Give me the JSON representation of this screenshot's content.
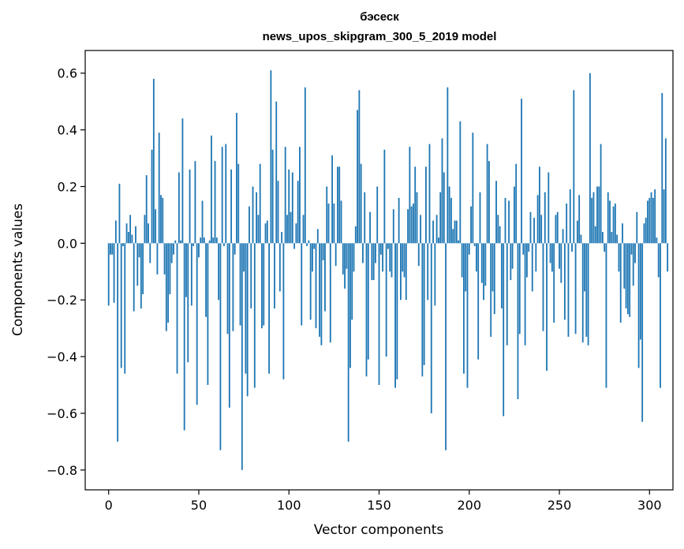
{
  "chart_data": {
    "type": "bar",
    "title_line1": "бэсеск",
    "title_line2": "news_upos_skipgram_300_5_2019 model",
    "xlabel": "Vector components",
    "ylabel": "Components values",
    "xlim": [
      -13,
      313
    ],
    "ylim": [
      -0.87,
      0.68
    ],
    "xticks": [
      0,
      50,
      100,
      150,
      200,
      250,
      300
    ],
    "yticks": [
      -0.8,
      -0.6,
      -0.4,
      -0.2,
      0.0,
      0.2,
      0.4,
      0.6
    ],
    "ytick_labels": [
      "−0.8",
      "−0.6",
      "−0.4",
      "−0.2",
      "0.0",
      "0.2",
      "0.4",
      "0.6"
    ],
    "grid": false,
    "bar_color": "#1f77b4",
    "values": [
      -0.22,
      -0.04,
      -0.04,
      -0.21,
      0.08,
      -0.7,
      0.21,
      -0.44,
      -0.01,
      -0.46,
      0.07,
      0.04,
      0.1,
      0.03,
      -0.24,
      0.06,
      -0.15,
      -0.05,
      -0.23,
      -0.18,
      0.1,
      0.24,
      0.07,
      -0.07,
      0.33,
      0.58,
      0.12,
      -0.11,
      0.39,
      0.17,
      0.16,
      -0.11,
      -0.31,
      -0.28,
      -0.18,
      -0.07,
      -0.04,
      0.01,
      -0.46,
      0.25,
      0.01,
      0.44,
      -0.66,
      -0.19,
      -0.42,
      0.26,
      -0.22,
      -0.01,
      0.29,
      -0.57,
      -0.05,
      0.02,
      0.15,
      0.02,
      -0.26,
      -0.5,
      0.01,
      0.38,
      0.02,
      0.29,
      0.02,
      -0.2,
      -0.73,
      0.34,
      -0.01,
      0.35,
      -0.32,
      -0.58,
      0.26,
      -0.31,
      -0.04,
      0.46,
      0.28,
      -0.29,
      -0.8,
      -0.1,
      -0.46,
      -0.54,
      0.13,
      -0.23,
      0.2,
      -0.51,
      0.18,
      0.1,
      0.28,
      -0.3,
      -0.29,
      0.07,
      0.08,
      -0.46,
      0.61,
      0.33,
      -0.23,
      0.5,
      0.22,
      -0.17,
      0.04,
      -0.48,
      0.34,
      0.1,
      0.26,
      0.11,
      0.25,
      -0.02,
      0.07,
      0.22,
      0.34,
      -0.29,
      0.1,
      0.55,
      -0.01,
      0.01,
      -0.27,
      -0.1,
      -0.02,
      -0.3,
      0.05,
      -0.33,
      -0.36,
      -0.06,
      -0.24,
      0.2,
      0.14,
      -0.35,
      0.31,
      0.14,
      -0.08,
      0.27,
      0.27,
      0.15,
      -0.11,
      -0.16,
      -0.09,
      -0.7,
      -0.44,
      -0.27,
      -0.1,
      0.06,
      0.47,
      0.54,
      0.28,
      -0.07,
      0.18,
      -0.47,
      -0.41,
      0.11,
      -0.13,
      -0.13,
      -0.07,
      0.2,
      -0.5,
      -0.04,
      -0.1,
      0.33,
      -0.4,
      -0.02,
      -0.1,
      -0.12,
      0.12,
      -0.51,
      -0.48,
      0.16,
      -0.2,
      -0.1,
      -0.12,
      -0.2,
      0.12,
      0.34,
      0.13,
      0.14,
      0.27,
      0.18,
      -0.08,
      0.1,
      -0.47,
      -0.43,
      0.27,
      -0.2,
      0.35,
      -0.6,
      0.08,
      -0.22,
      0.1,
      0.02,
      0.18,
      0.37,
      0.25,
      -0.73,
      0.55,
      0.2,
      0.16,
      0.05,
      0.08,
      0.08,
      0.01,
      0.43,
      -0.12,
      -0.46,
      -0.17,
      -0.51,
      -0.04,
      0.13,
      0.39,
      -0.01,
      -0.1,
      -0.41,
      0.18,
      -0.14,
      -0.2,
      -0.15,
      0.35,
      0.29,
      -0.33,
      -0.17,
      -0.25,
      0.22,
      0.1,
      0.06,
      -0.23,
      -0.61,
      0.16,
      -0.36,
      0.15,
      -0.13,
      -0.09,
      0.2,
      0.28,
      -0.55,
      -0.32,
      0.51,
      -0.04,
      -0.36,
      -0.12,
      -0.03,
      0.11,
      -0.17,
      0.09,
      -0.1,
      0.17,
      0.27,
      0.1,
      -0.31,
      0.18,
      -0.45,
      0.25,
      -0.07,
      -0.1,
      -0.28,
      0.1,
      0.11,
      -0.09,
      -0.14,
      0.05,
      -0.27,
      0.14,
      -0.33,
      0.19,
      -0.03,
      0.54,
      -0.32,
      0.08,
      0.17,
      0.03,
      -0.35,
      -0.17,
      -0.33,
      -0.36,
      0.6,
      0.16,
      0.18,
      0.06,
      0.2,
      0.2,
      0.35,
      0.04,
      -0.03,
      -0.51,
      0.18,
      0.15,
      0.04,
      0.13,
      0.14,
      0.03,
      -0.1,
      -0.28,
      0.07,
      -0.16,
      -0.23,
      -0.25,
      -0.26,
      -0.04,
      -0.15,
      -0.07,
      0.11,
      -0.44,
      -0.34,
      -0.63,
      0.07,
      0.09,
      0.15,
      0.16,
      0.18,
      0.16,
      0.19,
      0.02,
      -0.12,
      -0.51,
      0.53,
      0.19,
      0.37,
      -0.1
    ]
  }
}
